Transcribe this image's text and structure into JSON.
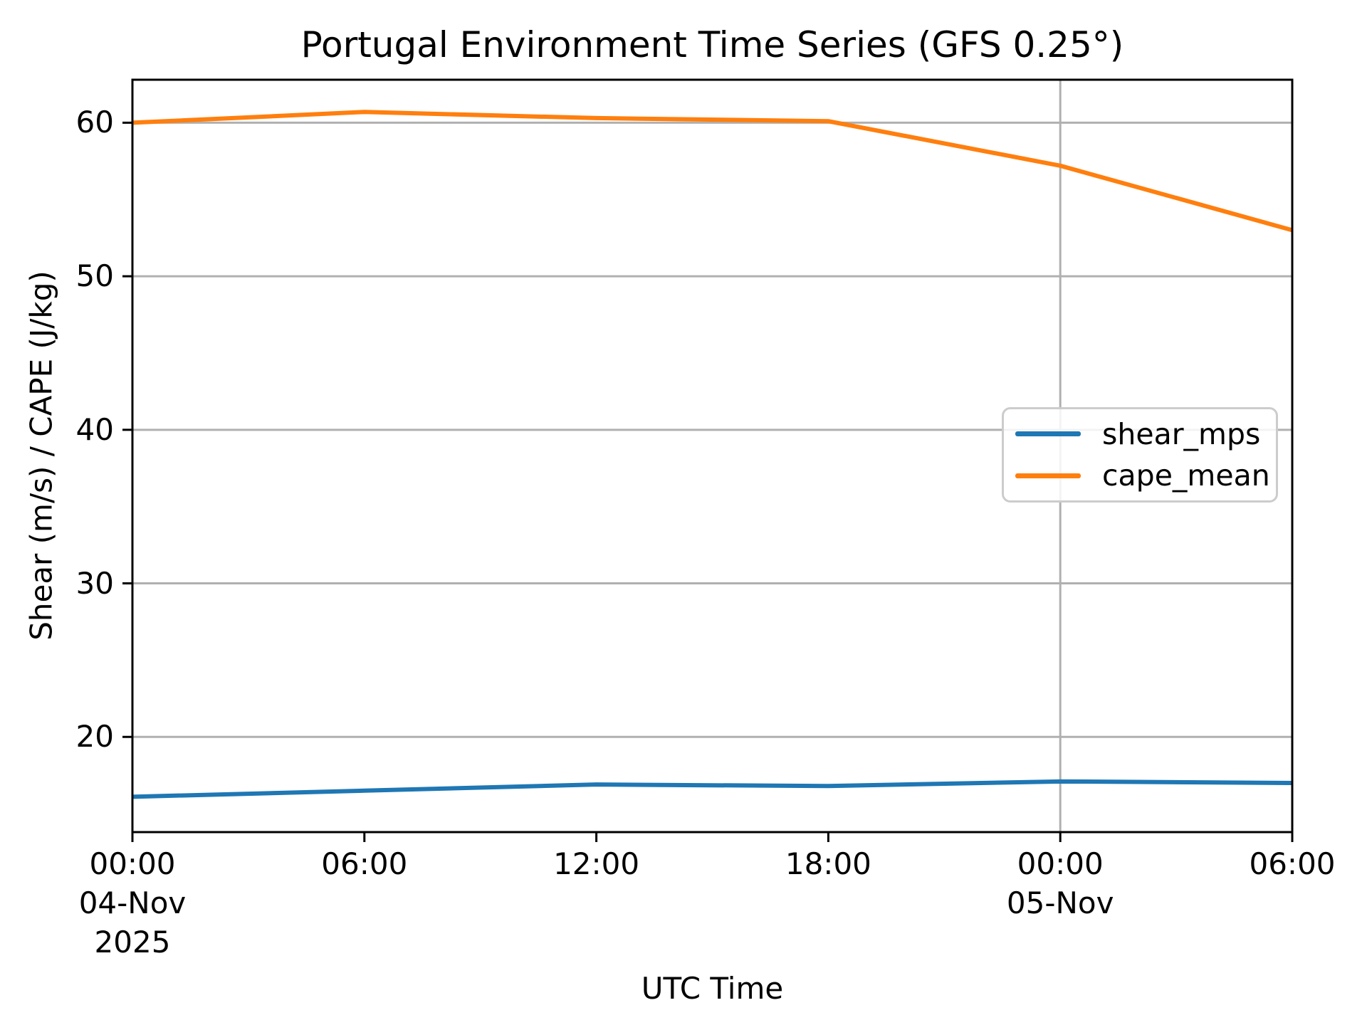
{
  "figure": {
    "background": "#ffffff",
    "text_color": "#000000",
    "spine_color": "#000000"
  },
  "chart_data": {
    "type": "line",
    "title": "Portugal Environment Time Series (GFS 0.25°)",
    "xlabel": "UTC Time",
    "ylabel": "Shear (m/s) / CAPE (J/kg)",
    "x_axis": {
      "start": "00:00 04-Nov 2025 UTC",
      "end": "06:00 05-Nov 2025 UTC",
      "tick_hours": [
        0,
        6,
        12,
        18,
        24,
        30
      ],
      "tick_labels": [
        [
          "00:00",
          "04-Nov",
          "2025"
        ],
        [
          "06:00"
        ],
        [
          "12:00"
        ],
        [
          "18:00"
        ],
        [
          "00:00",
          "05-Nov"
        ],
        [
          "06:00"
        ]
      ]
    },
    "xlim": [
      0,
      30
    ],
    "ylim": [
      13.8,
      62.8
    ],
    "y_ticks": [
      20,
      30,
      40,
      50,
      60
    ],
    "grid": {
      "color": "#b0b0b0",
      "horizontal_at": [
        20,
        30,
        40,
        50,
        60
      ],
      "vertical_at_hours": [
        0,
        24
      ]
    },
    "x_hours": [
      0,
      6,
      12,
      18,
      24,
      30
    ],
    "series": [
      {
        "name": "shear_mps",
        "color": "#1f77b4",
        "values": [
          16.1,
          16.5,
          16.9,
          16.8,
          17.1,
          17.0
        ]
      },
      {
        "name": "cape_mean",
        "color": "#ff7f0e",
        "values": [
          60.0,
          60.7,
          60.3,
          60.1,
          57.2,
          53.0
        ]
      }
    ],
    "legend": {
      "position": "middle-right",
      "entries": [
        "shear_mps",
        "cape_mean"
      ]
    }
  }
}
